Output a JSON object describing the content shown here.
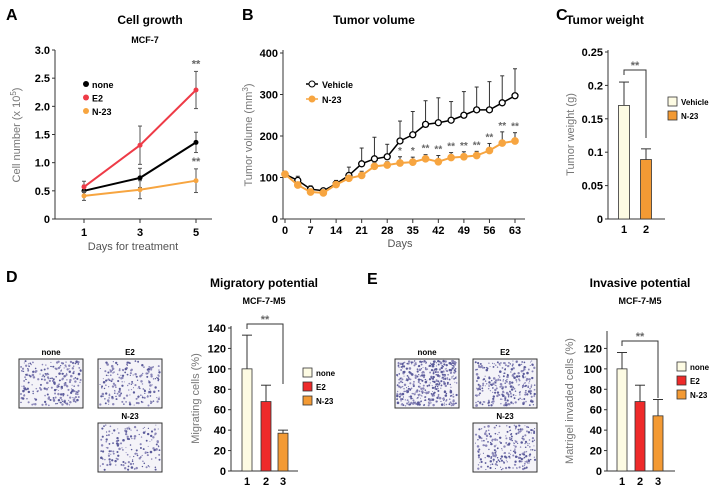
{
  "chart_data": [
    {
      "panel": "A",
      "type": "line",
      "title": "Cell growth",
      "subtitle": "MCF-7",
      "xlabel": "Days for treatment",
      "ylabel": "Cell number (x 10^5)",
      "ylabel_base": "Cell number (x 10",
      "ylabel_exp": "5",
      "ylabel_end": ")",
      "x": [
        1,
        3,
        5
      ],
      "ylim": [
        0,
        3.0
      ],
      "yticks": [
        "0",
        "0.5",
        "1.0",
        "1.5",
        "2.0",
        "2.5",
        "3.0"
      ],
      "xticks": [
        "1",
        "3",
        "5"
      ],
      "legend": "top-left",
      "series": [
        {
          "name": "none",
          "color": "#000000",
          "values": [
            0.5,
            0.73,
            1.36
          ],
          "errors": [
            0.1,
            0.17,
            0.18
          ]
        },
        {
          "name": "E2",
          "color": "#ee3b47",
          "values": [
            0.57,
            1.31,
            2.29
          ],
          "errors": [
            0.1,
            0.34,
            0.33
          ]
        },
        {
          "name": "N-23",
          "color": "#f7a540",
          "values": [
            0.41,
            0.52,
            0.68
          ],
          "errors": [
            0.08,
            0.16,
            0.21
          ]
        }
      ],
      "annotations": [
        {
          "x": 5,
          "series": "E2",
          "text": "**"
        },
        {
          "x": 5,
          "series": "N-23",
          "text": "**"
        }
      ]
    },
    {
      "panel": "B",
      "type": "line",
      "title": "Tumor volume",
      "xlabel": "Days",
      "ylabel": "Tumor volume (mm^3)",
      "ylabel_base": "Tumor volume (mm",
      "ylabel_exp": "3",
      "ylabel_end": ")",
      "x": [
        0,
        3.5,
        7,
        10.5,
        14,
        17.5,
        21,
        24.5,
        28,
        31.5,
        35,
        38.5,
        42,
        45.5,
        49,
        52.5,
        56,
        59.5,
        63
      ],
      "xlim": [
        0,
        63
      ],
      "ylim": [
        0,
        400
      ],
      "xticks": [
        "0",
        "7",
        "14",
        "21",
        "28",
        "35",
        "42",
        "49",
        "56",
        "63"
      ],
      "yticks": [
        "0",
        "100",
        "200",
        "300",
        "400"
      ],
      "legend": "top-left",
      "series": [
        {
          "name": "Vehicle",
          "color": "#000000",
          "marker": "open-circle",
          "values": [
            108,
            93,
            72,
            68,
            85,
            105,
            133,
            145,
            150,
            188,
            203,
            228,
            232,
            238,
            250,
            263,
            263,
            280,
            297
          ],
          "errors": [
            4,
            10,
            8,
            5,
            8,
            20,
            38,
            52,
            30,
            48,
            56,
            57,
            60,
            45,
            57,
            55,
            68,
            65,
            65
          ]
        },
        {
          "name": "N-23",
          "color": "#f7a540",
          "marker": "filled-circle",
          "values": [
            108,
            82,
            65,
            63,
            83,
            98,
            105,
            127,
            130,
            135,
            137,
            145,
            138,
            148,
            150,
            153,
            165,
            183,
            188
          ],
          "errors": [
            5,
            6,
            5,
            5,
            6,
            7,
            10,
            10,
            8,
            15,
            12,
            10,
            15,
            12,
            12,
            10,
            17,
            27,
            20
          ]
        }
      ],
      "significance": [
        "",
        "",
        "",
        "",
        "",
        "",
        "",
        "",
        "",
        "*",
        "*",
        "**",
        "**",
        "**",
        "**",
        "**",
        "**",
        "**",
        "**"
      ]
    },
    {
      "panel": "C",
      "type": "bar",
      "title": "Tumor weight",
      "ylabel": "Tumor weight (g)",
      "categories": [
        "1",
        "2"
      ],
      "ylim": [
        0,
        0.25
      ],
      "yticks": [
        "0",
        "0.05",
        "0.1",
        "0.15",
        "0.2",
        "0.25"
      ],
      "legend": "right",
      "series": [
        {
          "names": [
            "Vehicle",
            "N-23"
          ],
          "colors": [
            "#fdfbe3",
            "#f39a34"
          ],
          "values": [
            0.17,
            0.089
          ],
          "errors": [
            0.035,
            0.016
          ]
        }
      ],
      "bracket": {
        "from": 1,
        "to": 2,
        "text": "**"
      }
    },
    {
      "panel": "D",
      "type": "bar",
      "title": "Migratory potential",
      "subtitle": "MCF-7-M5",
      "ylabel": "Migrating cells (%)",
      "categories": [
        "1",
        "2",
        "3"
      ],
      "ylim": [
        0,
        140
      ],
      "yticks": [
        "0",
        "20",
        "40",
        "60",
        "80",
        "100",
        "120",
        "140"
      ],
      "legend": "right",
      "series": [
        {
          "names": [
            "none",
            "E2",
            "N-23"
          ],
          "colors": [
            "#fdfbe3",
            "#ee2a2a",
            "#f39a34"
          ],
          "values": [
            100,
            68,
            37
          ],
          "errors": [
            33,
            16,
            3
          ]
        }
      ],
      "bracket": {
        "from": 1,
        "to": 3,
        "text": "**"
      },
      "images": [
        "none",
        "E2",
        "N-23"
      ]
    },
    {
      "panel": "E",
      "type": "bar",
      "title": "Invasive potential",
      "subtitle": "MCF-7-M5",
      "ylabel": "Matrigel invaded cells (%)",
      "categories": [
        "1",
        "2",
        "3"
      ],
      "ylim": [
        0,
        140
      ],
      "yticks": [
        "0",
        "20",
        "40",
        "60",
        "80",
        "100",
        "120"
      ],
      "legend": "right",
      "series": [
        {
          "names": [
            "none",
            "E2",
            "N-23"
          ],
          "colors": [
            "#fdfbe3",
            "#ee2a2a",
            "#f39a34"
          ],
          "values": [
            100,
            68,
            54
          ],
          "errors": [
            16,
            16,
            16
          ]
        }
      ],
      "bracket": {
        "from": 1,
        "to": 3,
        "text": "**"
      },
      "images": [
        "none",
        "E2",
        "N-23"
      ]
    }
  ]
}
